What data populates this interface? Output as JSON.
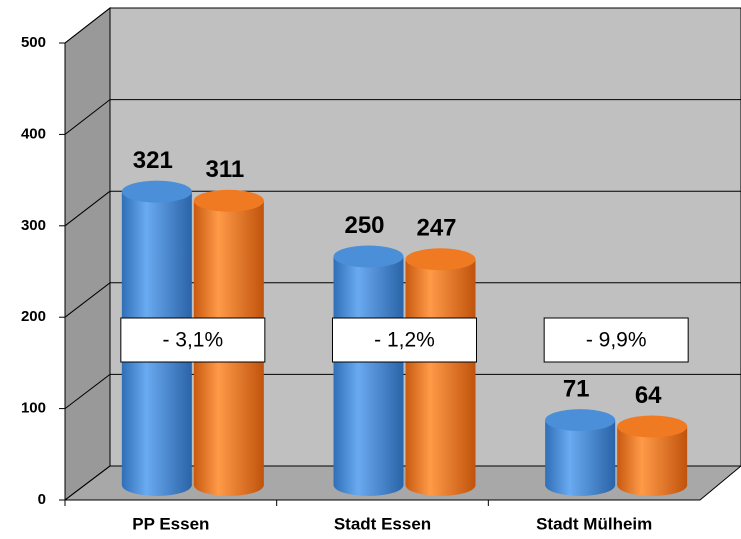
{
  "chart_data": {
    "type": "bar3d",
    "categories": [
      "PP Essen",
      "Stadt Essen",
      "Stadt Mülheim"
    ],
    "series": [
      {
        "color": "#4a8fd8",
        "values": [
          321,
          250,
          71
        ]
      },
      {
        "color": "#f07a22",
        "values": [
          311,
          247,
          64
        ]
      }
    ],
    "annotations": [
      {
        "category": 0,
        "text": "- 3,1%"
      },
      {
        "category": 1,
        "text": "- 1,2%"
      },
      {
        "category": 2,
        "text": "- 9,9%"
      }
    ],
    "ylim": [
      0,
      500
    ],
    "yticks": [
      0,
      100,
      200,
      300,
      400,
      500
    ],
    "grid": true
  }
}
